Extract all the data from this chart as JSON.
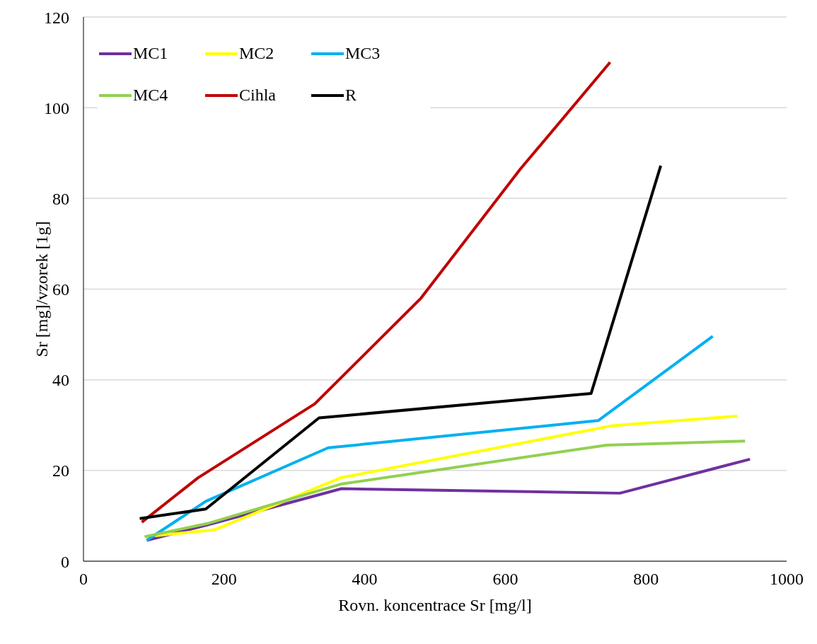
{
  "chart_data": {
    "type": "line",
    "xlabel": "Rovn. koncentrace Sr [mg/l]",
    "ylabel": "Sr [mg]/vzorek [1g]",
    "xlim": [
      0,
      1000
    ],
    "xticks": [
      0,
      200,
      400,
      600,
      800,
      1000
    ],
    "ylim": [
      0,
      120
    ],
    "yticks": [
      0,
      20,
      40,
      60,
      80,
      100,
      120
    ],
    "grid": "y",
    "legend": "top left",
    "marker": "none",
    "line_style": "solid",
    "series": [
      {
        "name": "MC1",
        "color": "#7030a0",
        "x": [
          90,
          176,
          367,
          763,
          948
        ],
        "values": [
          4.6,
          8,
          16,
          15,
          22.5
        ]
      },
      {
        "name": "MC2",
        "color": "#ffff00",
        "x": [
          87,
          186,
          366,
          753,
          930
        ],
        "values": [
          5.4,
          6.9,
          18.4,
          29.9,
          32
        ]
      },
      {
        "name": "MC3",
        "color": "#00b0f0",
        "x": [
          90,
          174,
          348,
          732,
          895
        ],
        "values": [
          4.6,
          13.2,
          25,
          31,
          49.6
        ]
      },
      {
        "name": "MC4",
        "color": "#92d050",
        "x": [
          87,
          176,
          366,
          744,
          941
        ],
        "values": [
          5.4,
          8.3,
          17,
          25.6,
          26.5
        ]
      },
      {
        "name": "Cihla",
        "color": "#c00000",
        "x": [
          83,
          163,
          329,
          480,
          621,
          749
        ],
        "values": [
          8.6,
          18.4,
          34.7,
          58,
          86.4,
          110
        ]
      },
      {
        "name": "R",
        "color": "#000000",
        "x": [
          80,
          174,
          335,
          722,
          821
        ],
        "values": [
          9.4,
          11.5,
          31.6,
          37,
          87.2
        ]
      }
    ]
  }
}
